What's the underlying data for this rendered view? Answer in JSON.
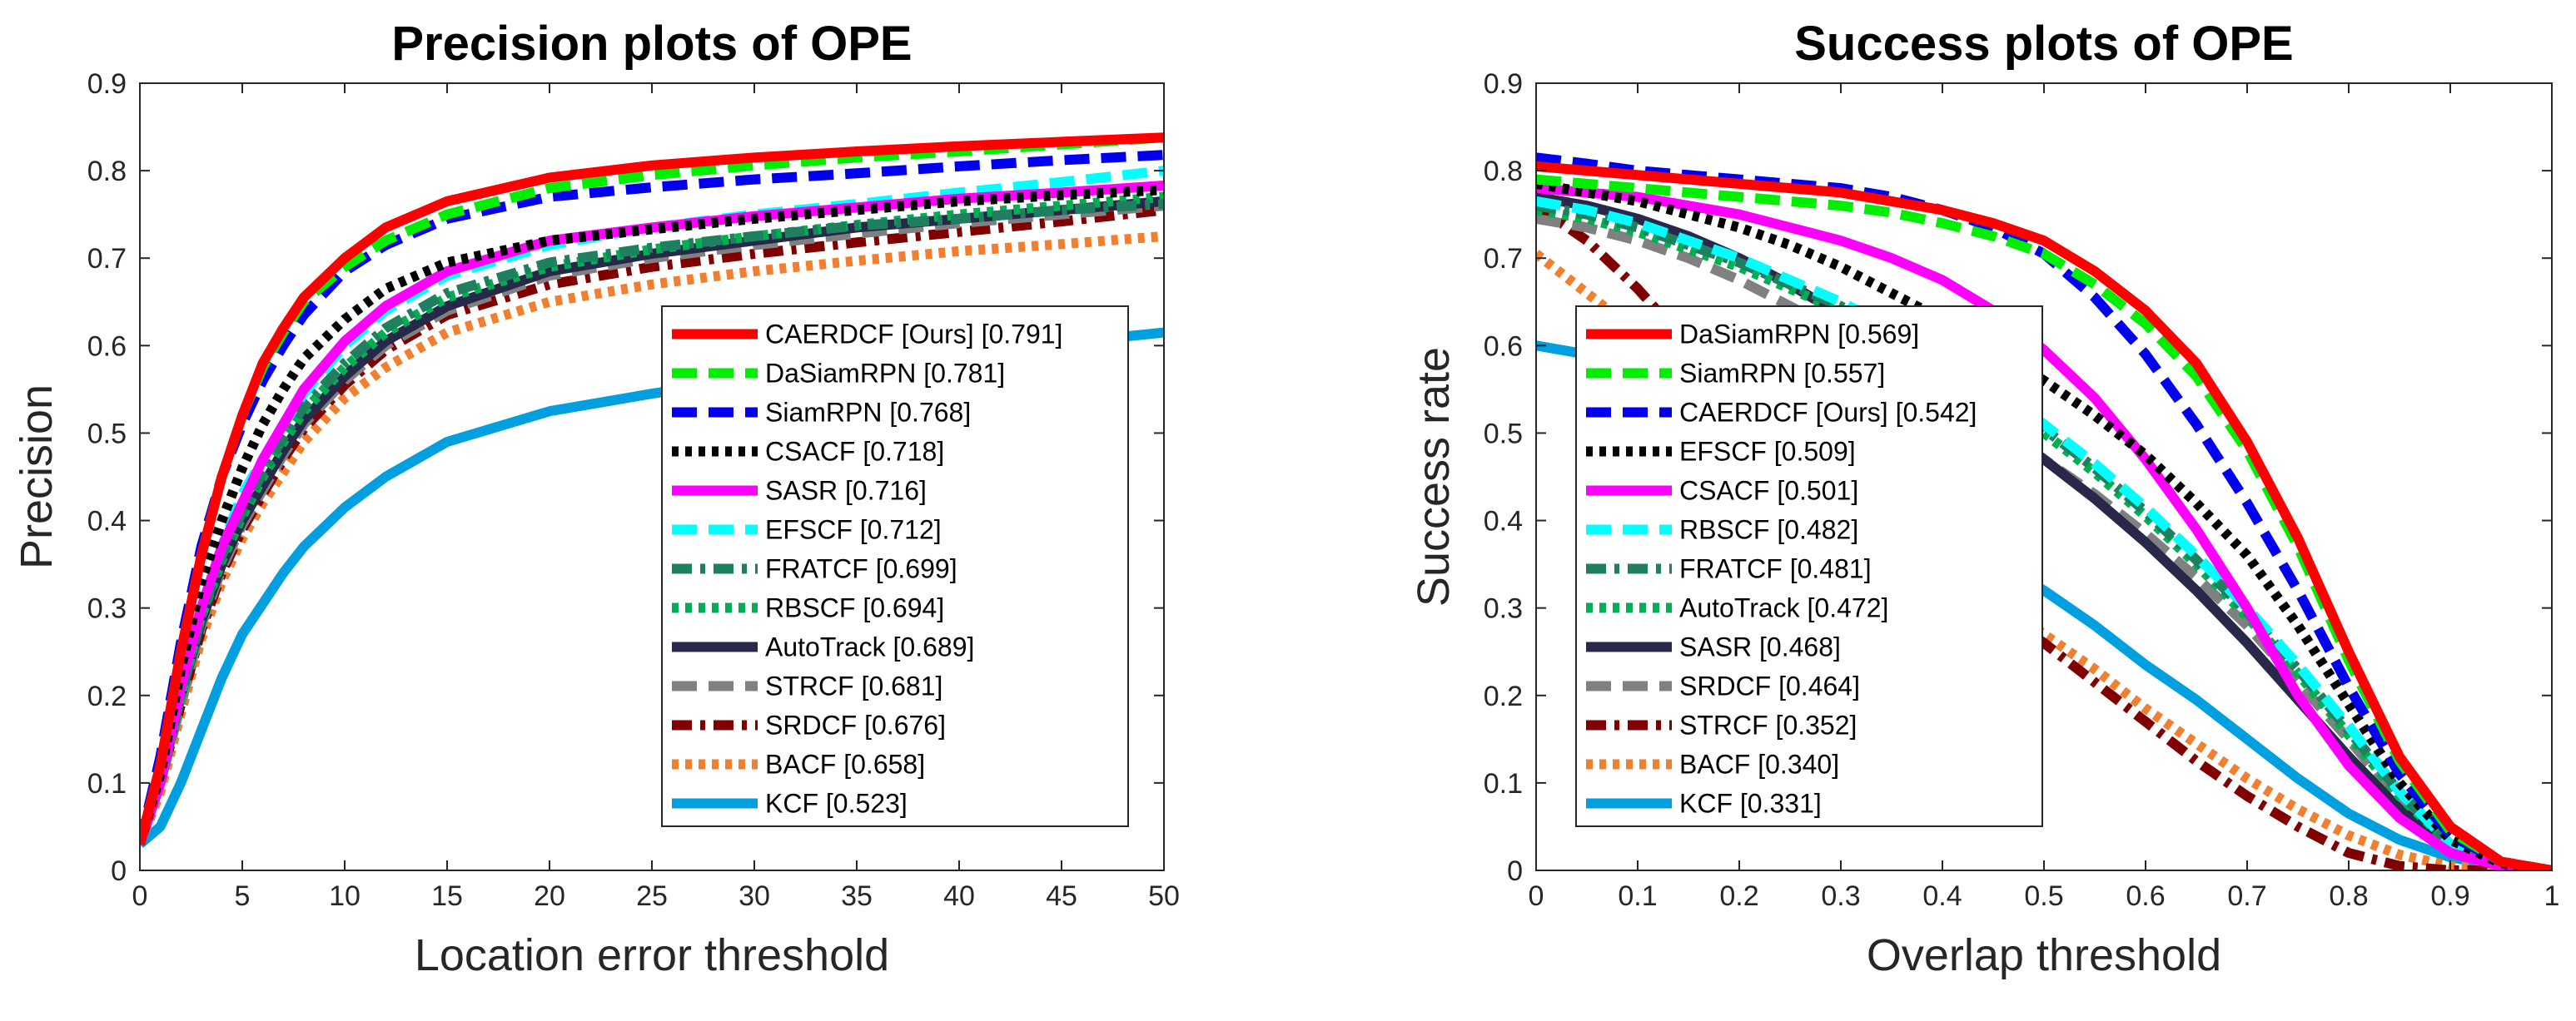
{
  "chart_data": [
    {
      "type": "line",
      "title": "Precision plots of OPE",
      "xlabel": "Location error threshold",
      "ylabel": "Precision",
      "xlim": [
        0,
        50
      ],
      "ylim": [
        0,
        0.9
      ],
      "xticks": [
        0,
        5,
        10,
        15,
        20,
        25,
        30,
        35,
        40,
        45,
        50
      ],
      "yticks": [
        0,
        0.1,
        0.2,
        0.3,
        0.4,
        0.5,
        0.6,
        0.7,
        0.8,
        0.9
      ],
      "legend_position": "lower-right",
      "x": [
        0,
        1,
        2,
        3,
        4,
        5,
        6,
        7,
        8,
        10,
        12,
        15,
        20,
        25,
        30,
        35,
        40,
        45,
        50
      ],
      "series": [
        {
          "name": "CAERDCF [Ours] [0.791]",
          "color": "#ff0000",
          "style": "solid",
          "values": [
            0.03,
            0.12,
            0.25,
            0.36,
            0.45,
            0.52,
            0.58,
            0.62,
            0.655,
            0.7,
            0.735,
            0.765,
            0.792,
            0.806,
            0.815,
            0.822,
            0.828,
            0.833,
            0.838
          ]
        },
        {
          "name": "DaSiamRPN [0.781]",
          "color": "#00ee00",
          "style": "dash",
          "values": [
            0.03,
            0.12,
            0.25,
            0.36,
            0.45,
            0.52,
            0.575,
            0.615,
            0.65,
            0.69,
            0.72,
            0.75,
            0.78,
            0.795,
            0.806,
            0.815,
            0.822,
            0.83,
            0.838
          ]
        },
        {
          "name": "SiamRPN [0.768]",
          "color": "#0000ee",
          "style": "dash",
          "values": [
            0.03,
            0.13,
            0.26,
            0.37,
            0.45,
            0.51,
            0.56,
            0.6,
            0.635,
            0.685,
            0.715,
            0.745,
            0.77,
            0.781,
            0.79,
            0.797,
            0.805,
            0.812,
            0.818
          ]
        },
        {
          "name": "CSACF [0.718]",
          "color": "#000000",
          "style": "dot",
          "values": [
            0.03,
            0.11,
            0.23,
            0.33,
            0.4,
            0.46,
            0.51,
            0.55,
            0.585,
            0.63,
            0.665,
            0.695,
            0.72,
            0.733,
            0.745,
            0.755,
            0.765,
            0.772,
            0.778
          ]
        },
        {
          "name": "SASR [0.716]",
          "color": "#ff00ff",
          "style": "solid",
          "values": [
            0.03,
            0.1,
            0.21,
            0.3,
            0.37,
            0.42,
            0.47,
            0.51,
            0.55,
            0.605,
            0.645,
            0.685,
            0.72,
            0.735,
            0.748,
            0.758,
            0.768,
            0.775,
            0.783
          ]
        },
        {
          "name": "EFSCF [0.712]",
          "color": "#00ffff",
          "style": "dash",
          "values": [
            0.03,
            0.1,
            0.21,
            0.3,
            0.37,
            0.43,
            0.47,
            0.51,
            0.545,
            0.6,
            0.64,
            0.68,
            0.715,
            0.735,
            0.75,
            0.762,
            0.775,
            0.787,
            0.8
          ]
        },
        {
          "name": "FRATCF [0.699]",
          "color": "#1f8060",
          "style": "dashdot",
          "values": [
            0.03,
            0.1,
            0.2,
            0.29,
            0.36,
            0.41,
            0.455,
            0.495,
            0.53,
            0.58,
            0.62,
            0.66,
            0.695,
            0.712,
            0.725,
            0.737,
            0.745,
            0.755,
            0.762
          ]
        },
        {
          "name": "RBSCF [0.694]",
          "color": "#00b050",
          "style": "dot",
          "values": [
            0.03,
            0.1,
            0.2,
            0.29,
            0.355,
            0.405,
            0.45,
            0.49,
            0.525,
            0.575,
            0.615,
            0.655,
            0.69,
            0.71,
            0.725,
            0.738,
            0.75,
            0.76,
            0.77
          ]
        },
        {
          "name": "AutoTrack [0.689]",
          "color": "#27284a",
          "style": "solid",
          "values": [
            0.03,
            0.1,
            0.2,
            0.285,
            0.35,
            0.4,
            0.44,
            0.48,
            0.515,
            0.565,
            0.605,
            0.645,
            0.685,
            0.705,
            0.72,
            0.735,
            0.745,
            0.755,
            0.765
          ]
        },
        {
          "name": "STRCF [0.681]",
          "color": "#808080",
          "style": "dash",
          "values": [
            0.03,
            0.1,
            0.19,
            0.28,
            0.345,
            0.395,
            0.435,
            0.475,
            0.51,
            0.56,
            0.6,
            0.64,
            0.68,
            0.7,
            0.715,
            0.728,
            0.74,
            0.75,
            0.76
          ]
        },
        {
          "name": "SRDCF [0.676]",
          "color": "#800000",
          "style": "dashdot",
          "values": [
            0.03,
            0.1,
            0.19,
            0.275,
            0.34,
            0.39,
            0.43,
            0.47,
            0.505,
            0.555,
            0.595,
            0.635,
            0.67,
            0.69,
            0.705,
            0.718,
            0.73,
            0.742,
            0.755
          ]
        },
        {
          "name": "BACF [0.658]",
          "color": "#f08030",
          "style": "dot",
          "values": [
            0.03,
            0.09,
            0.18,
            0.265,
            0.33,
            0.38,
            0.42,
            0.455,
            0.49,
            0.54,
            0.575,
            0.615,
            0.65,
            0.67,
            0.685,
            0.697,
            0.708,
            0.716,
            0.725
          ]
        },
        {
          "name": "KCF [0.523]",
          "color": "#00a0e0",
          "style": "solid",
          "values": [
            0.03,
            0.05,
            0.1,
            0.16,
            0.22,
            0.27,
            0.305,
            0.34,
            0.37,
            0.415,
            0.45,
            0.49,
            0.525,
            0.545,
            0.562,
            0.575,
            0.59,
            0.603,
            0.615
          ]
        }
      ]
    },
    {
      "type": "line",
      "title": "Success plots of OPE",
      "xlabel": "Overlap threshold",
      "ylabel": "Success rate",
      "xlim": [
        0,
        1
      ],
      "ylim": [
        0,
        0.9
      ],
      "xticks": [
        0,
        0.1,
        0.2,
        0.3,
        0.4,
        0.5,
        0.6,
        0.7,
        0.8,
        0.9,
        1
      ],
      "yticks": [
        0,
        0.1,
        0.2,
        0.3,
        0.4,
        0.5,
        0.6,
        0.7,
        0.8,
        0.9
      ],
      "legend_position": "left",
      "x": [
        0,
        0.05,
        0.1,
        0.15,
        0.2,
        0.25,
        0.3,
        0.35,
        0.4,
        0.45,
        0.5,
        0.55,
        0.6,
        0.65,
        0.7,
        0.75,
        0.8,
        0.85,
        0.9,
        0.95,
        1
      ],
      "series": [
        {
          "name": "DaSiamRPN [0.569]",
          "color": "#ff0000",
          "style": "solid",
          "values": [
            0.805,
            0.8,
            0.795,
            0.79,
            0.785,
            0.78,
            0.775,
            0.765,
            0.755,
            0.74,
            0.72,
            0.685,
            0.64,
            0.58,
            0.49,
            0.38,
            0.25,
            0.13,
            0.05,
            0.01,
            0
          ]
        },
        {
          "name": "SiamRPN [0.557]",
          "color": "#00ee00",
          "style": "dash",
          "values": [
            0.79,
            0.785,
            0.78,
            0.775,
            0.77,
            0.765,
            0.76,
            0.752,
            0.74,
            0.725,
            0.705,
            0.67,
            0.625,
            0.565,
            0.48,
            0.37,
            0.24,
            0.125,
            0.045,
            0.01,
            0
          ]
        },
        {
          "name": "CAERDCF [Ours] [0.542]",
          "color": "#0000ee",
          "style": "dash",
          "values": [
            0.815,
            0.808,
            0.8,
            0.795,
            0.79,
            0.785,
            0.78,
            0.77,
            0.755,
            0.735,
            0.705,
            0.655,
            0.59,
            0.51,
            0.42,
            0.32,
            0.21,
            0.11,
            0.04,
            0.01,
            0
          ]
        },
        {
          "name": "EFSCF [0.509]",
          "color": "#000000",
          "style": "dot",
          "values": [
            0.785,
            0.775,
            0.765,
            0.75,
            0.735,
            0.715,
            0.69,
            0.66,
            0.63,
            0.595,
            0.56,
            0.52,
            0.475,
            0.42,
            0.36,
            0.28,
            0.19,
            0.1,
            0.035,
            0.008,
            0
          ]
        },
        {
          "name": "CSACF [0.501]",
          "color": "#ff00ff",
          "style": "solid",
          "values": [
            0.78,
            0.775,
            0.77,
            0.76,
            0.75,
            0.735,
            0.72,
            0.7,
            0.675,
            0.64,
            0.595,
            0.54,
            0.47,
            0.39,
            0.3,
            0.2,
            0.12,
            0.06,
            0.02,
            0.005,
            0
          ]
        },
        {
          "name": "RBSCF [0.482]",
          "color": "#00ffff",
          "style": "dash",
          "values": [
            0.765,
            0.755,
            0.74,
            0.72,
            0.7,
            0.675,
            0.65,
            0.62,
            0.585,
            0.55,
            0.51,
            0.465,
            0.415,
            0.36,
            0.3,
            0.235,
            0.165,
            0.09,
            0.03,
            0.008,
            0
          ]
        },
        {
          "name": "FRATCF [0.481]",
          "color": "#1f8060",
          "style": "dashdot",
          "values": [
            0.76,
            0.75,
            0.735,
            0.715,
            0.695,
            0.67,
            0.645,
            0.615,
            0.58,
            0.545,
            0.505,
            0.46,
            0.41,
            0.355,
            0.295,
            0.23,
            0.16,
            0.09,
            0.03,
            0.008,
            0
          ]
        },
        {
          "name": "AutoTrack [0.472]",
          "color": "#00b050",
          "style": "dot",
          "values": [
            0.755,
            0.745,
            0.73,
            0.71,
            0.69,
            0.665,
            0.64,
            0.61,
            0.575,
            0.54,
            0.5,
            0.455,
            0.405,
            0.35,
            0.29,
            0.225,
            0.155,
            0.085,
            0.03,
            0.008,
            0
          ]
        },
        {
          "name": "SASR [0.468]",
          "color": "#27284a",
          "style": "solid",
          "values": [
            0.77,
            0.76,
            0.745,
            0.725,
            0.7,
            0.67,
            0.635,
            0.595,
            0.555,
            0.515,
            0.47,
            0.425,
            0.375,
            0.32,
            0.26,
            0.195,
            0.13,
            0.07,
            0.025,
            0.006,
            0
          ]
        },
        {
          "name": "SRDCF [0.464]",
          "color": "#808080",
          "style": "dash",
          "values": [
            0.745,
            0.735,
            0.72,
            0.7,
            0.675,
            0.645,
            0.615,
            0.58,
            0.545,
            0.51,
            0.47,
            0.43,
            0.385,
            0.335,
            0.28,
            0.215,
            0.15,
            0.08,
            0.028,
            0.007,
            0
          ]
        },
        {
          "name": "STRCF [0.352]",
          "color": "#800000",
          "style": "dashdot",
          "values": [
            0.76,
            0.72,
            0.665,
            0.6,
            0.535,
            0.475,
            0.42,
            0.375,
            0.335,
            0.3,
            0.26,
            0.215,
            0.17,
            0.125,
            0.085,
            0.05,
            0.02,
            0.005,
            0,
            0,
            0
          ]
        },
        {
          "name": "BACF [0.340]",
          "color": "#f08030",
          "style": "dot",
          "values": [
            0.705,
            0.66,
            0.615,
            0.565,
            0.515,
            0.47,
            0.425,
            0.385,
            0.345,
            0.31,
            0.27,
            0.23,
            0.185,
            0.145,
            0.105,
            0.07,
            0.04,
            0.018,
            0.005,
            0,
            0
          ]
        },
        {
          "name": "KCF [0.331]",
          "color": "#00a0e0",
          "style": "solid",
          "values": [
            0.6,
            0.59,
            0.575,
            0.555,
            0.53,
            0.5,
            0.47,
            0.435,
            0.395,
            0.355,
            0.32,
            0.28,
            0.235,
            0.195,
            0.15,
            0.105,
            0.065,
            0.035,
            0.015,
            0.005,
            0
          ]
        }
      ]
    }
  ]
}
